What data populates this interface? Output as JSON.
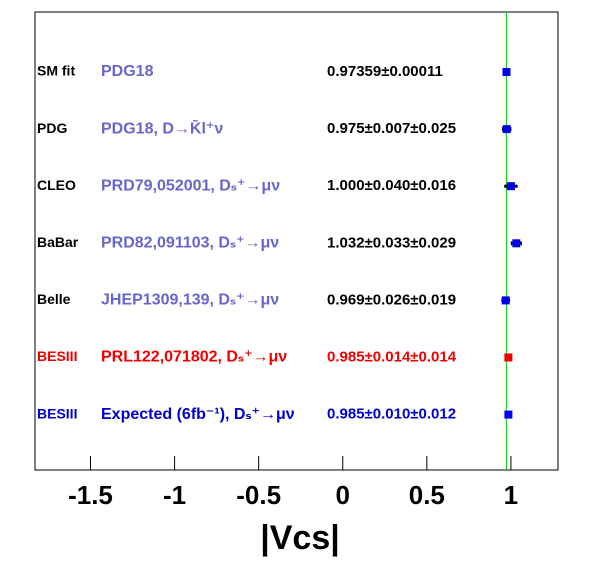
{
  "chart_data": {
    "type": "forest",
    "x_label": "|Vcs|",
    "xlim": [
      -1.83,
      1.28
    ],
    "xticks": [
      -1.5,
      -1,
      -0.5,
      0,
      0.5,
      1
    ],
    "categories": [
      "SM fit",
      "PDG",
      "CLEO",
      "BaBar",
      "Belle",
      "BESIII",
      "BESIII"
    ],
    "references": [
      "PDG18",
      "PDG18, D→K̄l⁺ν",
      "PRD79,052001, Dₛ⁺→μν",
      "PRD82,091103, Dₛ⁺→μν",
      "JHEP1309,139, Dₛ⁺→μν",
      "PRL122,071802, Dₛ⁺→μν",
      "Expected (6fb⁻¹), Dₛ⁺→μν"
    ],
    "values": [
      0.97359,
      0.975,
      1.0,
      1.032,
      0.969,
      0.985,
      0.985
    ],
    "errors": [
      0.00011,
      0.007,
      0.04,
      0.033,
      0.026,
      0.014,
      0.01
    ],
    "errors_syst": [
      null,
      0.025,
      0.016,
      0.029,
      0.019,
      0.014,
      0.012
    ],
    "value_labels": [
      "0.97359±0.00011",
      "0.975±0.007±0.025",
      "1.000±0.040±0.016",
      "1.032±0.033±0.029",
      "0.969±0.026±0.019",
      "0.985±0.014±0.014",
      "0.985±0.010±0.012"
    ],
    "label_colors": [
      "#000000",
      "#000000",
      "#000000",
      "#000000",
      "#000000",
      "#ee0000",
      "#0000cc"
    ],
    "reference_colors": [
      "#6666cc",
      "#6666cc",
      "#6666cc",
      "#6666cc",
      "#6666cc",
      "#ee0000",
      "#0000cc"
    ],
    "value_colors": [
      "#000000",
      "#000000",
      "#000000",
      "#000000",
      "#000000",
      "#ee0000",
      "#0000cc"
    ],
    "marker_colors": [
      "#0000ee",
      "#0000ee",
      "#0000ee",
      "#0000ee",
      "#0000ee",
      "#ee0000",
      "#0000ee"
    ],
    "reference_line_color": "#22cc22"
  }
}
